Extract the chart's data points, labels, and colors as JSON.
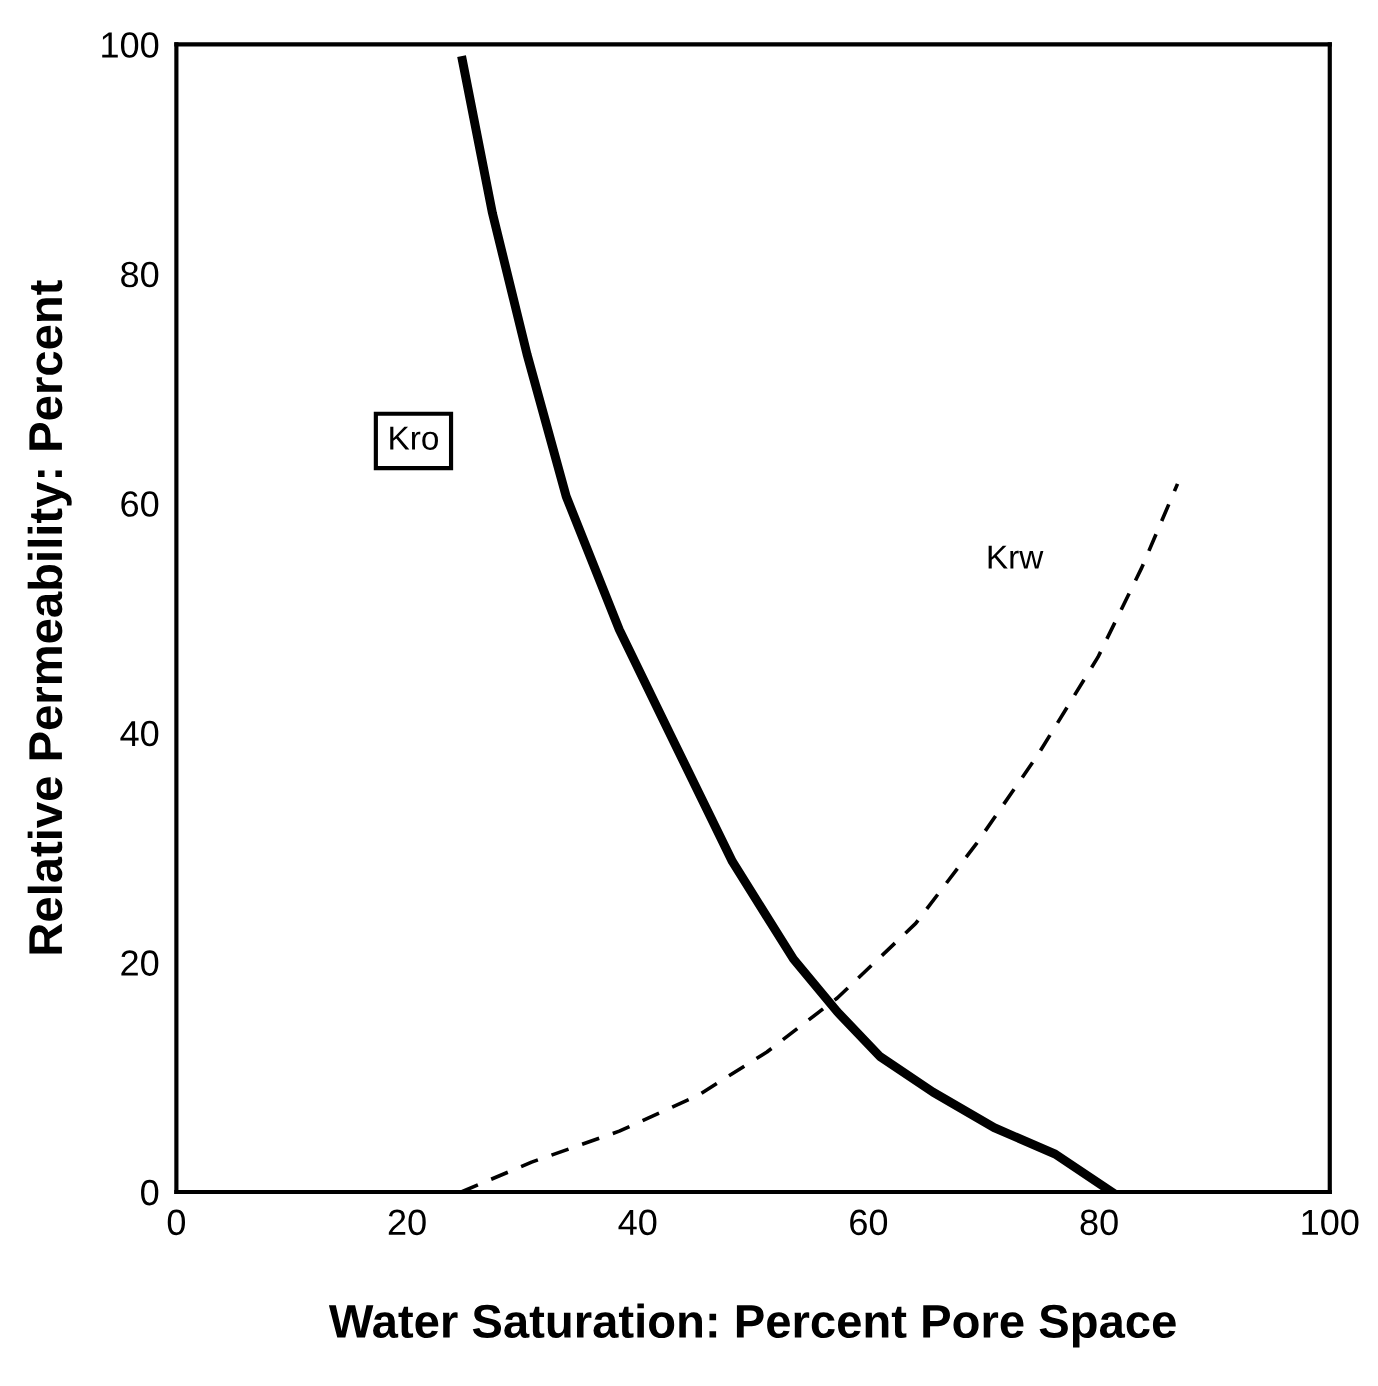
{
  "chart_data": {
    "type": "line",
    "xlabel": "Water Saturation: Percent Pore Space",
    "ylabel": "Relative Permeability: Percent",
    "series": [
      {
        "name": "Kro",
        "color": "#000000",
        "line_style": "solid",
        "x": [
          24.8,
          27.4,
          30.4,
          33.8,
          38.4,
          42.9,
          48.2,
          53.5,
          57.3,
          61,
          65.6,
          70.9,
          76.2,
          81.1
        ],
        "values": [
          98.6,
          85.3,
          73,
          60.6,
          49,
          39.7,
          28.8,
          20.3,
          15.7,
          11.8,
          8.7,
          5.6,
          3.3,
          0
        ]
      },
      {
        "name": "Krw",
        "color": "#000000",
        "line_style": "dashed",
        "x": [
          24.7,
          30.8,
          38.4,
          45.2,
          51.2,
          57.3,
          64.1,
          69.4,
          74.7,
          79.9,
          83.7,
          86.8
        ],
        "values": [
          0,
          2.6,
          5.3,
          8.4,
          12.2,
          16.9,
          23.4,
          30.4,
          38.1,
          46.6,
          54.4,
          61.7
        ]
      }
    ],
    "xlim": [
      0,
      100
    ],
    "ylim": [
      0,
      100
    ],
    "xticks": [
      0,
      20,
      40,
      60,
      80,
      100
    ],
    "yticks": [
      0,
      20,
      40,
      60,
      80,
      100
    ],
    "grid": false,
    "legend": false,
    "marker": "none"
  }
}
